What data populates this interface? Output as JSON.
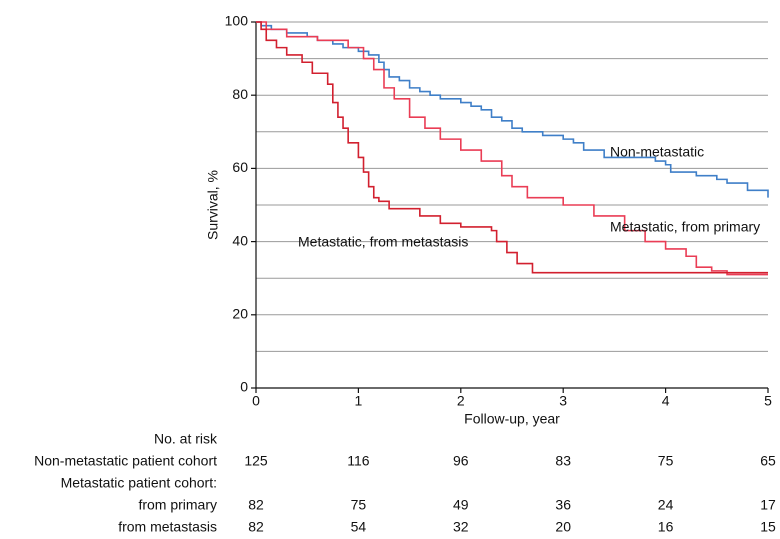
{
  "chart_data": {
    "type": "line",
    "step": true,
    "xlabel": "Follow-up, year",
    "ylabel": "Survival, %",
    "xlim": [
      0,
      5
    ],
    "ylim": [
      0,
      100
    ],
    "xticks": [
      0,
      1,
      2,
      3,
      4,
      5
    ],
    "yticks": [
      0,
      20,
      40,
      60,
      80,
      100
    ],
    "minor_ygrid": [
      10,
      30,
      50,
      70,
      90
    ],
    "grid": true,
    "series": [
      {
        "name": "Non-metastatic",
        "color": "#3f7fc8",
        "x": [
          0,
          0.05,
          0.15,
          0.3,
          0.5,
          0.6,
          0.75,
          0.85,
          1.0,
          1.1,
          1.2,
          1.25,
          1.3,
          1.4,
          1.5,
          1.6,
          1.7,
          1.8,
          2.0,
          2.1,
          2.2,
          2.3,
          2.4,
          2.5,
          2.6,
          2.8,
          3.0,
          3.1,
          3.2,
          3.4,
          3.9,
          4.0,
          4.05,
          4.3,
          4.5,
          4.6,
          4.8,
          5.0
        ],
        "values": [
          100,
          99,
          98,
          97,
          96,
          95,
          94,
          93,
          92,
          91,
          89,
          87,
          85,
          84,
          82,
          81,
          80,
          79,
          78,
          77,
          76,
          74,
          73,
          71,
          70,
          69,
          68,
          67,
          65,
          63,
          62,
          61,
          59,
          58,
          57,
          56,
          54,
          52
        ]
      },
      {
        "name": "Metastatic, from primary",
        "color": "#ea3d55",
        "x": [
          0,
          0.1,
          0.3,
          0.6,
          0.9,
          1.05,
          1.15,
          1.25,
          1.35,
          1.5,
          1.65,
          1.8,
          2.0,
          2.2,
          2.4,
          2.5,
          2.65,
          3.0,
          3.3,
          3.6,
          3.8,
          4.0,
          4.2,
          4.3,
          4.45,
          4.6
        ],
        "values": [
          100,
          98,
          96,
          95,
          93,
          90,
          87,
          82,
          79,
          74,
          71,
          68,
          65,
          62,
          58,
          55,
          52,
          50,
          47,
          43,
          40,
          38,
          36,
          33,
          32,
          31
        ]
      },
      {
        "name": "Metastatic, from metastasis",
        "color": "#d2202f",
        "x": [
          0,
          0.05,
          0.1,
          0.2,
          0.3,
          0.45,
          0.55,
          0.7,
          0.75,
          0.8,
          0.85,
          0.9,
          1.0,
          1.05,
          1.1,
          1.15,
          1.2,
          1.3,
          1.6,
          1.8,
          2.0,
          2.3,
          2.35,
          2.45,
          2.55,
          2.7
        ],
        "values": [
          100,
          98,
          95,
          93,
          91,
          89,
          86,
          83,
          78,
          74,
          71,
          67,
          63,
          59,
          55,
          52,
          51,
          49,
          47,
          45,
          44,
          43,
          40,
          37,
          34,
          31.5
        ]
      }
    ],
    "risk_table": {
      "title": "No. at risk",
      "rows": [
        {
          "label": "Non-metastatic patient cohort",
          "values": [
            125,
            116,
            96,
            83,
            75,
            65
          ]
        },
        {
          "label": "Metastatic patient cohort:"
        },
        {
          "label": "from primary",
          "values": [
            82,
            75,
            49,
            36,
            24,
            17
          ]
        },
        {
          "label": "from metastasis",
          "values": [
            82,
            54,
            32,
            20,
            16,
            15
          ]
        }
      ]
    }
  }
}
